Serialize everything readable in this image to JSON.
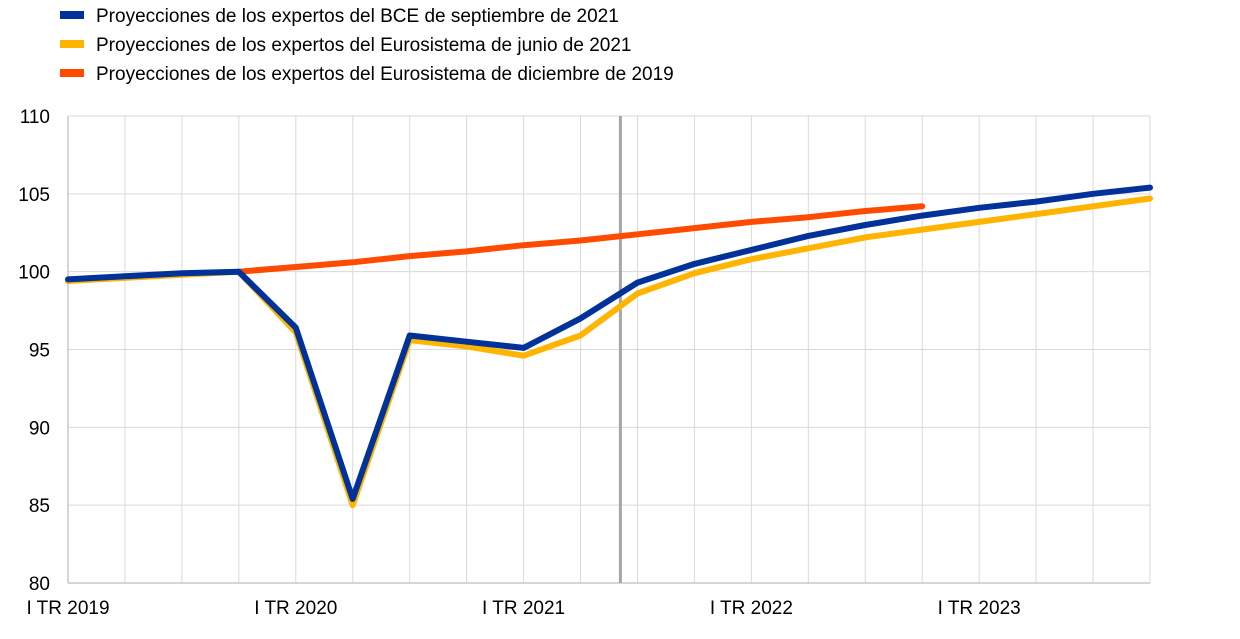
{
  "chart_data": {
    "type": "line",
    "title": "",
    "xlabel": "",
    "ylabel": "",
    "ylim": [
      80,
      110
    ],
    "yticks": [
      80,
      85,
      90,
      95,
      100,
      105,
      110
    ],
    "grid": true,
    "legend_placement": "top-left",
    "x": [
      "I TR 2019",
      "II TR 2019",
      "III TR 2019",
      "IV TR 2019",
      "I TR 2020",
      "II TR 2020",
      "III TR 2020",
      "IV TR 2020",
      "I TR 2021",
      "II TR 2021",
      "III TR 2021",
      "IV TR 2021",
      "I TR 2022",
      "II TR 2022",
      "III TR 2022",
      "IV TR 2022",
      "I TR 2023",
      "II TR 2023",
      "III TR 2023",
      "IV TR 2023"
    ],
    "xtick_labels": [
      "I TR 2019",
      "I TR 2020",
      "I TR 2021",
      "I TR 2022",
      "I TR 2023"
    ],
    "vertical_marker_between": [
      "II TR 2021",
      "III TR 2021"
    ],
    "series": [
      {
        "name": "Proyecciones de los expertos del BCE de septiembre de 2021",
        "color": "#003299",
        "values": [
          99.5,
          99.7,
          99.9,
          100.0,
          96.4,
          85.4,
          95.9,
          95.5,
          95.1,
          97.0,
          99.3,
          100.5,
          101.4,
          102.3,
          103.0,
          103.6,
          104.1,
          104.5,
          105.0,
          105.4
        ]
      },
      {
        "name": "Proyecciones de los expertos del Eurosistema de junio de 2021",
        "color": "#FFB400",
        "values": [
          99.4,
          99.6,
          99.8,
          100.0,
          96.1,
          85.0,
          95.6,
          95.2,
          94.6,
          95.9,
          98.6,
          99.9,
          100.8,
          101.5,
          102.2,
          102.7,
          103.2,
          103.7,
          104.2,
          104.7
        ]
      },
      {
        "name": "Proyecciones de los expertos del Eurosistema de diciembre de 2019",
        "color": "#FF4B00",
        "values": [
          null,
          null,
          null,
          100.0,
          100.3,
          100.6,
          101.0,
          101.3,
          101.7,
          102.0,
          102.4,
          102.8,
          103.2,
          103.5,
          103.9,
          104.2,
          null,
          null,
          null,
          null
        ]
      }
    ]
  }
}
